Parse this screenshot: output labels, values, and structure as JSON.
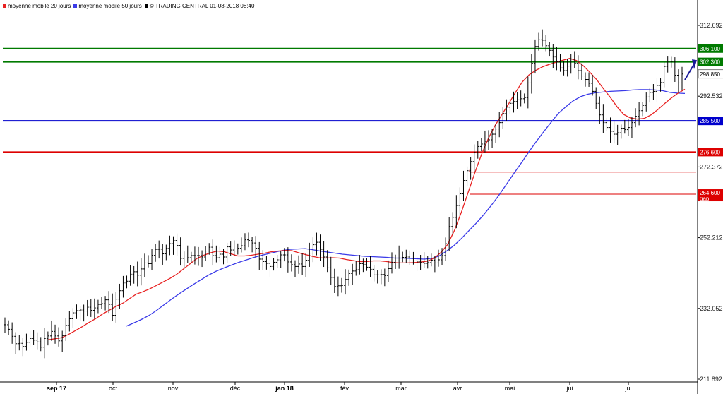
{
  "legend": {
    "ma20_label": "moyenne mobile 20 jours",
    "ma50_label": "moyenne mobile 50 jours",
    "source_label": "© TRADING CENTRAL 01-08-2018 08:40"
  },
  "colors": {
    "ma20": "#e82222",
    "ma50": "#3a3ae8",
    "resistance": "#007a00",
    "support_blue": "#0000cc",
    "support_red": "#dd0000",
    "price": "#000000",
    "last": "#000000"
  },
  "chart_data": {
    "type": "line",
    "title": "",
    "xlabel": "",
    "ylabel": "",
    "ylim": [
      211.892,
      316.0
    ],
    "y_ticks": [
      "312.692",
      "292.532",
      "272.372",
      "252.212",
      "232.052",
      "211.892"
    ],
    "y_tick_values": [
      312.692,
      292.532,
      272.372,
      252.212,
      232.052,
      211.892
    ],
    "x_ticks": [
      "sep 17",
      "oct",
      "nov",
      "déc",
      "jan 18",
      "fév",
      "mar",
      "avr",
      "mai",
      "jui",
      "jui"
    ],
    "x_tick_bold": [
      true,
      false,
      false,
      false,
      true,
      false,
      false,
      false,
      false,
      false,
      false
    ],
    "levels": [
      {
        "value": 306.1,
        "label": "306.100",
        "color": "#007a00",
        "kind": "line"
      },
      {
        "value": 302.3,
        "label": "302.300",
        "color": "#007a00",
        "kind": "line"
      },
      {
        "value": 285.5,
        "label": "285.500",
        "color": "#0000cc",
        "kind": "line"
      },
      {
        "value": 276.6,
        "label": "276.600",
        "color": "#dd0000",
        "kind": "line"
      }
    ],
    "gap_lines": [
      {
        "value": 270.9
      },
      {
        "value": 264.6,
        "label": "264.600",
        "sublabel": "gap"
      }
    ],
    "last_price": {
      "value": 298.85,
      "label": "298.850"
    },
    "grid": false,
    "legend_position": "top-left",
    "price_series": [
      {
        "name": "",
        "points_per_tick": "bar",
        "values": [
          227.4,
          226.1,
          224.1,
          222.0,
          222.1,
          221.2,
          222.4,
          223.5,
          223.0,
          222.5,
          221.0,
          223.5,
          224.2,
          225.5,
          224.2,
          222.8,
          224.3,
          227.2,
          229.1,
          230.8,
          231.4,
          231.6,
          231.3,
          232.4,
          231.5,
          232.2,
          233.2,
          233.4,
          234.5,
          233.2,
          230.1,
          234.7,
          237.1,
          239.3,
          239.8,
          241.8,
          242.5,
          241.5,
          243.3,
          245.0,
          244.8,
          247.2,
          248.9,
          248.9,
          247.6,
          249.2,
          250.5,
          251.4,
          250.0,
          246.3,
          247.0,
          246.5,
          247.1,
          247.1,
          247.1,
          246.7,
          248.4,
          249.5,
          247.1,
          246.5,
          247.5,
          246.7,
          249.6,
          248.7,
          248.4,
          249.2,
          249.9,
          251.6,
          251.4,
          250.7,
          249.2,
          246.1,
          245.4,
          244.9,
          244.0,
          245.2,
          245.9,
          247.3,
          247.3,
          245.3,
          244.5,
          244.0,
          244.7,
          244.0,
          245.8,
          247.8,
          250.2,
          250.9,
          248.8,
          246.7,
          243.6,
          240.9,
          238.3,
          238.5,
          238.6,
          240.3,
          242.0,
          242.7,
          243.1,
          244.8,
          244.6,
          243.8,
          243.2,
          241.6,
          241.6,
          241.7,
          241.4,
          243.4,
          245.2,
          245.6,
          247.0,
          246.6,
          246.7,
          246.4,
          245.6,
          245.3,
          245.1,
          244.9,
          245.1,
          245.8,
          245.0,
          245.9,
          247.1,
          250.5,
          255.4,
          258.0,
          261.4,
          264.7,
          268.5,
          271.3,
          273.9,
          276.5,
          278.2,
          278.9,
          279.7,
          280.1,
          281.7,
          283.2,
          285.0,
          287.6,
          289.4,
          290.5,
          291.0,
          291.5,
          291.8,
          292.1,
          296.3,
          301.9,
          306.7,
          308.6,
          308.5,
          306.9,
          305.6,
          303.7,
          302.3,
          300.6,
          299.8,
          301.1,
          303.1,
          301.9,
          299.8,
          298.3,
          297.3,
          296.2,
          293.9,
          290.5,
          287.2,
          285.0,
          283.6,
          282.5,
          281.7,
          282.1,
          283.4,
          283.0,
          283.6,
          285.0,
          286.8,
          288.4,
          289.9,
          292.3,
          293.6,
          293.9,
          295.6,
          296.4,
          301.0,
          302.5,
          302.4,
          298.5,
          296.3,
          298.85
        ]
      },
      {
        "name": "moyenne mobile 20 jours",
        "values_note": "",
        "values": [
          223.1,
          223.4,
          223.7,
          224.6,
          225.7,
          226.8,
          228.0,
          229.1,
          230.4,
          231.5,
          232.6,
          233.5,
          234.8,
          236.1,
          236.8,
          237.6,
          238.6,
          239.6,
          240.6,
          241.8,
          243.3,
          244.8,
          246.3,
          247.2,
          247.9,
          248.4,
          248.2,
          247.6,
          247.0,
          247.0,
          247.2,
          247.5,
          247.8,
          248.2,
          248.4,
          248.6,
          248.5,
          247.9,
          247.4,
          246.9,
          246.5,
          246.4,
          246.5,
          246.4,
          246.0,
          245.7,
          245.4,
          245.4,
          245.6,
          245.6,
          245.4,
          245.1,
          245.0,
          245.0,
          245.1,
          245.3,
          245.5,
          246.4,
          248.0,
          250.3,
          254.3,
          259.4,
          265.0,
          270.7,
          276.0,
          280.5,
          284.2,
          287.3,
          290.4,
          293.6,
          296.6,
          298.6,
          299.9,
          300.9,
          301.6,
          302.2,
          302.8,
          303.3,
          302.7,
          301.2,
          299.3,
          297.2,
          294.6,
          292.2,
          289.5,
          287.3,
          286.3,
          286.0,
          286.2,
          287.2,
          288.7,
          290.4,
          292.0,
          293.4,
          294.5
        ]
      },
      {
        "name": "moyenne mobile 50 jours",
        "values": [
          227.0,
          227.9,
          228.9,
          230.0,
          231.4,
          233.0,
          234.6,
          236.1,
          237.5,
          238.9,
          240.2,
          241.5,
          242.6,
          243.5,
          244.3,
          245.1,
          245.8,
          246.5,
          247.1,
          247.6,
          248.1,
          248.6,
          248.9,
          249.0,
          249.1,
          248.8,
          248.4,
          248.1,
          247.8,
          247.5,
          247.3,
          247.1,
          246.9,
          246.8,
          246.7,
          246.6,
          246.4,
          246.4,
          246.3,
          246.2,
          246.1,
          246.3,
          247.0,
          248.4,
          250.0,
          252.0,
          254.2,
          256.4,
          258.8,
          261.4,
          264.2,
          267.3,
          270.4,
          273.4,
          276.5,
          279.5,
          282.3,
          285.0,
          287.6,
          289.5,
          291.2,
          292.4,
          293.1,
          293.5,
          293.7,
          293.9,
          294.0,
          294.1,
          294.3,
          294.4,
          294.4,
          294.3,
          294.1,
          293.6,
          293.4,
          293.3
        ]
      }
    ]
  }
}
